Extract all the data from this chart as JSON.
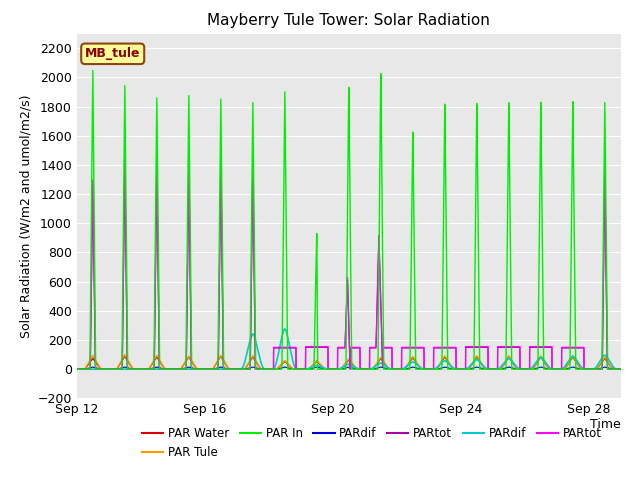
{
  "title": "Mayberry Tule Tower: Solar Radiation",
  "xlabel": "Time",
  "ylabel": "Solar Radiation (W/m2 and umol/m2/s)",
  "ylim": [
    -200,
    2300
  ],
  "yticks": [
    -200,
    0,
    200,
    400,
    600,
    800,
    1000,
    1200,
    1400,
    1600,
    1800,
    2000,
    2200
  ],
  "xlim_days": [
    0,
    17
  ],
  "xtick_labels": [
    "Sep 12",
    "Sep 16",
    "Sep 20",
    "Sep 24",
    "Sep 28"
  ],
  "xtick_positions": [
    0,
    4,
    8,
    12,
    16
  ],
  "series_colors": {
    "PAR_Water": "#dd0000",
    "PAR_Tule": "#ff9900",
    "PAR_In": "#00ee00",
    "PARdif_blue": "#0000dd",
    "PARtot_purple": "#aa00aa",
    "PARdif_cyan": "#00cccc",
    "PARtot_magenta": "#ff00ff"
  },
  "station_label": "MB_tule",
  "axes_bg": "#e8e8e8"
}
